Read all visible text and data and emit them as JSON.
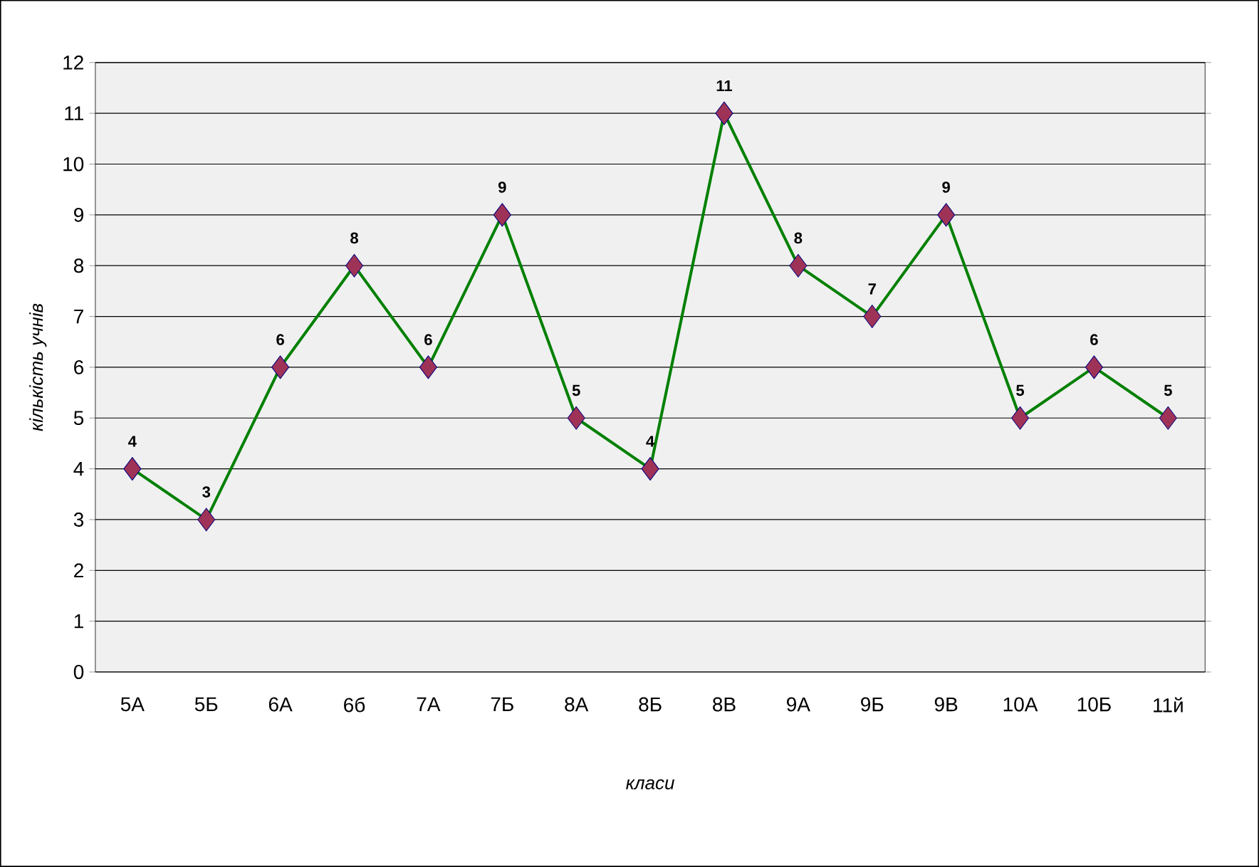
{
  "chart_data": {
    "type": "line",
    "xlabel": "класи",
    "ylabel": "кількість учнів",
    "categories": [
      "5А",
      "5Б",
      "6А",
      "6б",
      "7А",
      "7Б",
      "8А",
      "8Б",
      "8В",
      "9А",
      "9Б",
      "9В",
      "10А",
      "10Б",
      "11й"
    ],
    "values": [
      4,
      3,
      6,
      8,
      6,
      9,
      5,
      4,
      11,
      8,
      7,
      9,
      5,
      6,
      5
    ],
    "color": "#008000",
    "marker": "diamond",
    "data_labels": true,
    "grid": "y",
    "ylim": [
      0,
      12
    ],
    "yticks": [
      0,
      1,
      2,
      3,
      4,
      5,
      6,
      7,
      8,
      9,
      10,
      11,
      12
    ]
  }
}
